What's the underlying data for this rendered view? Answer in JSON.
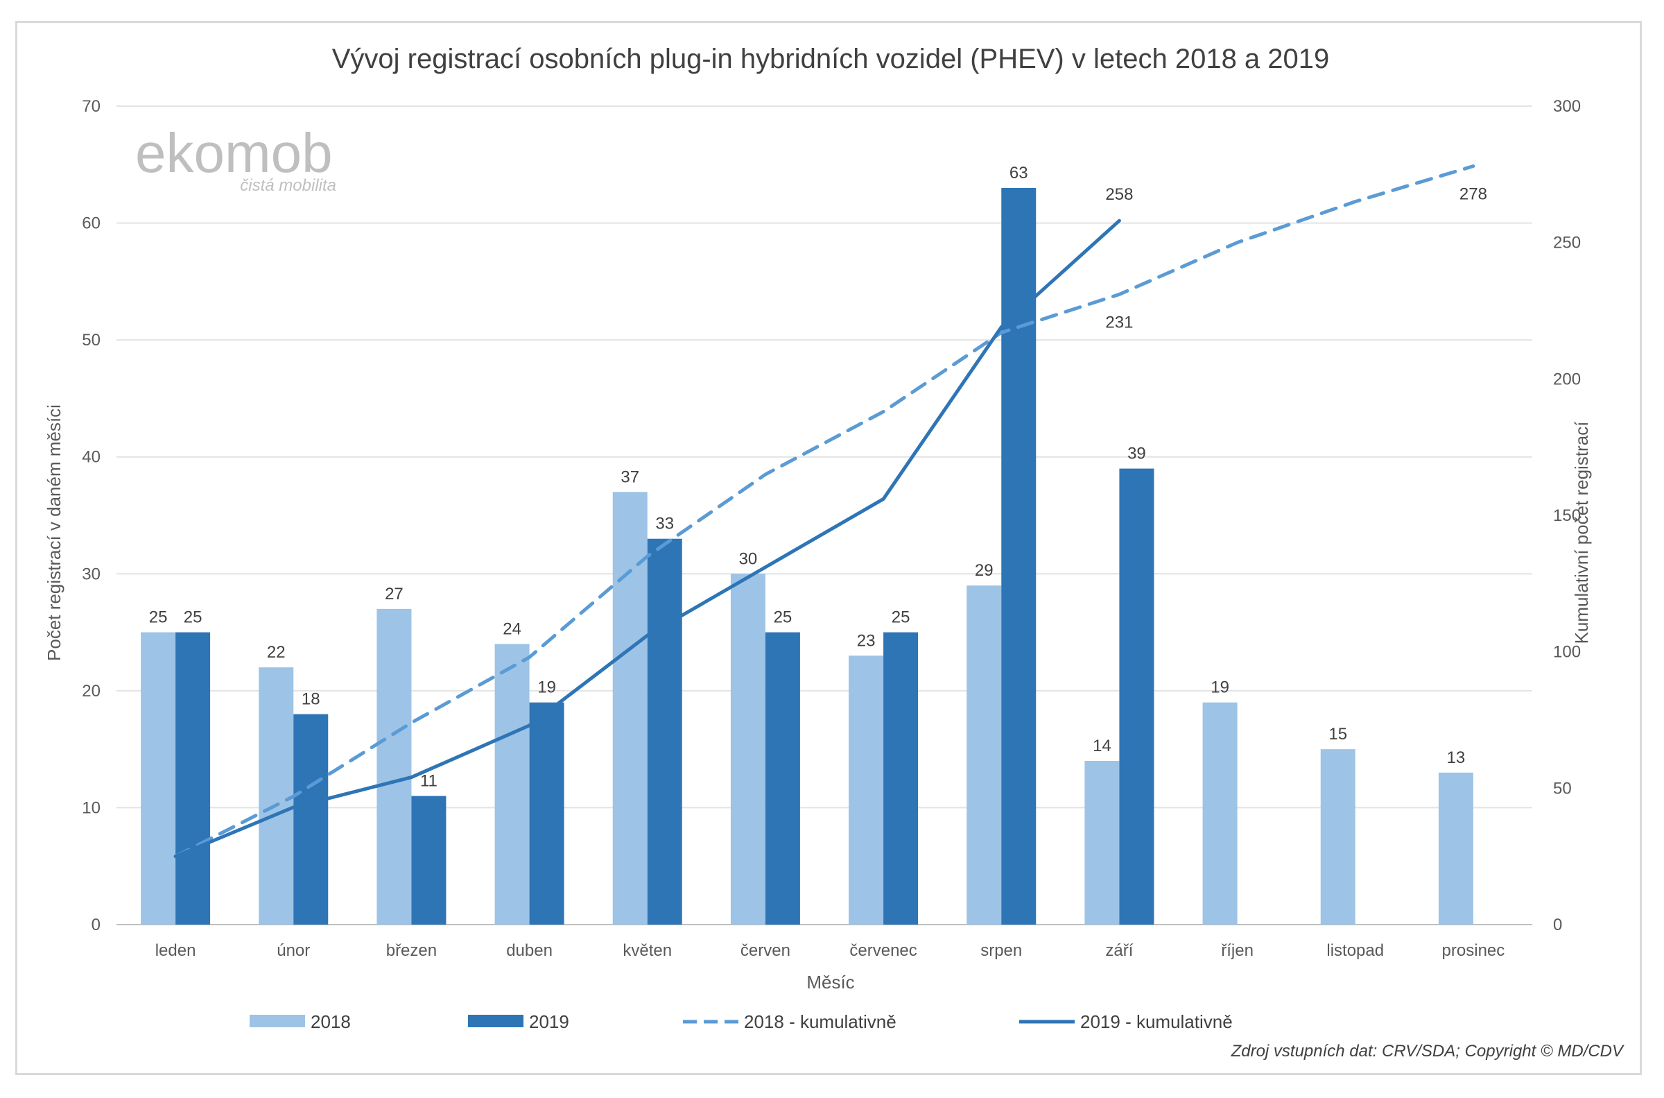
{
  "chart_data": {
    "type": "bar",
    "title": "Vývoj registrací osobních plug-in hybridních vozidel (PHEV) v letech 2018 a 2019",
    "xlabel": "Měsíc",
    "ylabel": "Počet registrací v daném měsíci",
    "y2label": "Kumulativní počet registrací",
    "ylim": [
      0,
      70
    ],
    "yticks": [
      0,
      10,
      20,
      30,
      40,
      50,
      60,
      70
    ],
    "y2lim": [
      0,
      300
    ],
    "y2ticks": [
      0,
      50,
      100,
      150,
      200,
      250,
      300
    ],
    "categories": [
      "leden",
      "únor",
      "březen",
      "duben",
      "květen",
      "červen",
      "červenec",
      "srpen",
      "září",
      "říjen",
      "listopad",
      "prosinec"
    ],
    "series": [
      {
        "name": "2018",
        "kind": "bar",
        "axis": "left",
        "color": "#9dc3e6",
        "values": [
          25,
          22,
          27,
          24,
          37,
          30,
          23,
          29,
          14,
          19,
          15,
          13
        ]
      },
      {
        "name": "2019",
        "kind": "bar",
        "axis": "left",
        "color": "#2e75b6",
        "values": [
          25,
          18,
          11,
          19,
          33,
          25,
          25,
          63,
          39,
          null,
          null,
          null
        ]
      },
      {
        "name": "2018 - kumulativně",
        "kind": "line",
        "axis": "right",
        "style": "dashed",
        "color": "#5b9bd5",
        "values": [
          25,
          47,
          74,
          98,
          135,
          165,
          188,
          217,
          231,
          250,
          265,
          278
        ],
        "labelled_points": [
          {
            "index": 8,
            "text": "231"
          },
          {
            "index": 11,
            "text": "278"
          }
        ]
      },
      {
        "name": "2019 - kumulativně",
        "kind": "line",
        "axis": "right",
        "style": "solid",
        "color": "#2e75b6",
        "values": [
          25,
          43,
          54,
          73,
          106,
          131,
          156,
          219,
          258,
          null,
          null,
          null
        ],
        "labelled_points": [
          {
            "index": 8,
            "text": "258"
          }
        ]
      }
    ],
    "grid": true,
    "legend": "bottom"
  },
  "watermark": {
    "main": "ekomob",
    "sub": "čistá mobilita"
  },
  "source_note": "Zdroj vstupních dat: CRV/SDA; Copyright © MD/CDV"
}
